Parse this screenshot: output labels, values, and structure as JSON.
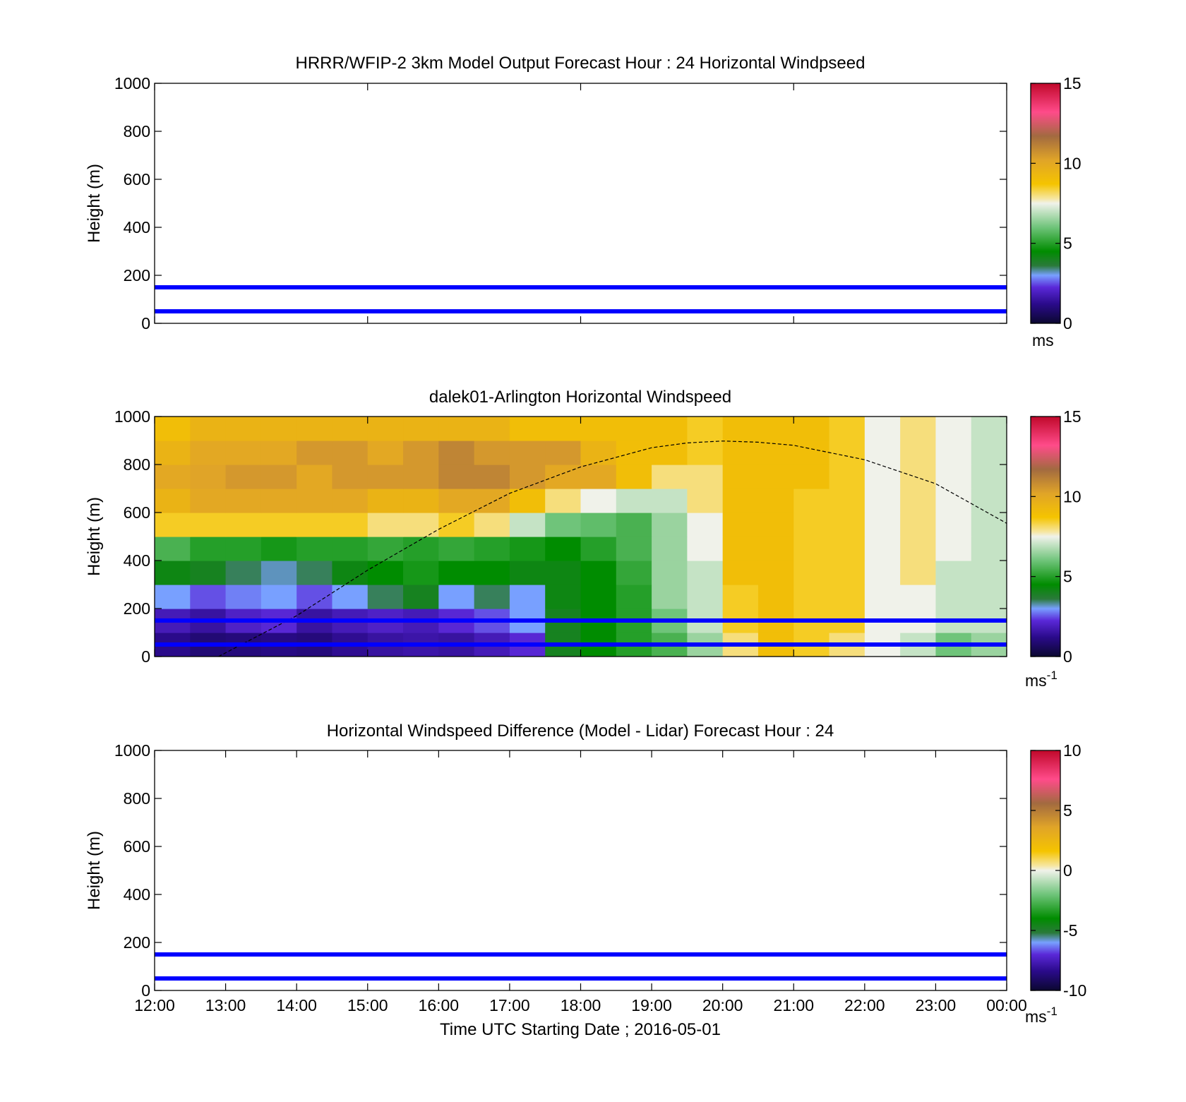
{
  "chart_data": [
    {
      "type": "heatmap",
      "title": "HRRR/WFIP-2 3km Model Output   Forecast Hour : 24 Horizontal Windpseed",
      "ylabel": "Height (m)",
      "xlabel": "",
      "ylim": [
        0,
        1000
      ],
      "yticks": [
        "0",
        "200",
        "400",
        "600",
        "800",
        "1000"
      ],
      "xlim_hours": [
        12,
        24
      ],
      "show_xtick_labels": false,
      "colorbar": {
        "ticks": [
          "0",
          "5",
          "10",
          "15"
        ],
        "range": [
          0,
          15
        ],
        "unit": "ms",
        "unit_sup": ""
      },
      "hlines": [
        {
          "y": 150,
          "color": "#0000ff"
        },
        {
          "y": 50,
          "color": "#0000ff"
        }
      ],
      "data": null
    },
    {
      "type": "heatmap",
      "title": "dalek01-Arlington  Horizontal Windspeed",
      "ylabel": "Height (m)",
      "xlabel": "",
      "ylim": [
        0,
        1000
      ],
      "yticks": [
        "0",
        "200",
        "400",
        "600",
        "800",
        "1000"
      ],
      "xlim_hours": [
        12,
        24
      ],
      "show_xtick_labels": false,
      "colorbar": {
        "ticks": [
          "0",
          "5",
          "10",
          "15"
        ],
        "range": [
          0,
          15
        ],
        "unit": "ms",
        "unit_sup": "-1"
      },
      "hlines": [
        {
          "y": 150,
          "color": "#0000ff"
        },
        {
          "y": 50,
          "color": "#0000ff"
        }
      ],
      "curve": {
        "style": "dashed",
        "color": "#000000",
        "points": [
          [
            12.9,
            0
          ],
          [
            14.0,
            170
          ],
          [
            15.0,
            360
          ],
          [
            16.0,
            530
          ],
          [
            17.0,
            680
          ],
          [
            18.0,
            790
          ],
          [
            19.0,
            870
          ],
          [
            19.5,
            890
          ],
          [
            20.0,
            898
          ],
          [
            20.5,
            893
          ],
          [
            21.0,
            880
          ],
          [
            22.0,
            820
          ],
          [
            23.0,
            720
          ],
          [
            24.0,
            555
          ]
        ]
      },
      "data": {
        "time_hours": [
          12.0,
          12.5,
          13.0,
          13.5,
          14.0,
          14.5,
          15.0,
          15.5,
          16.0,
          16.5,
          17.0,
          17.5,
          18.0,
          18.5,
          19.0,
          19.5,
          20.0,
          20.5,
          21.0,
          21.5,
          22.0,
          22.5,
          23.0,
          23.5
        ],
        "height_bins_m": [
          0,
          100,
          200,
          300,
          400,
          500,
          600,
          700,
          800,
          900
        ],
        "windspeed": [
          [
            1.2,
            0.9,
            1.0,
            1.1,
            1.0,
            1.3,
            1.5,
            1.6,
            1.5,
            1.8,
            2.2,
            4.0,
            4.5,
            5.0,
            5.5,
            6.5,
            8.0,
            9.0,
            8.5,
            8.0,
            7.5,
            7.0,
            6.0,
            6.5
          ],
          [
            1.8,
            1.5,
            2.0,
            2.2,
            1.5,
            1.8,
            2.0,
            1.8,
            2.2,
            2.5,
            3.0,
            4.0,
            4.5,
            5.0,
            6.0,
            7.0,
            8.5,
            9.0,
            8.5,
            8.5,
            7.5,
            7.5,
            7.0,
            7.0
          ],
          [
            3.0,
            2.5,
            2.8,
            3.0,
            2.5,
            3.0,
            3.5,
            4.0,
            3.0,
            3.5,
            3.0,
            4.2,
            4.5,
            5.0,
            6.5,
            7.0,
            8.5,
            9.0,
            8.5,
            8.5,
            7.5,
            7.5,
            7.0,
            7.0
          ],
          [
            4.2,
            4.0,
            3.5,
            3.2,
            3.5,
            4.2,
            4.5,
            4.8,
            4.5,
            4.5,
            4.2,
            4.2,
            4.5,
            5.2,
            6.5,
            7.0,
            9.0,
            9.0,
            8.5,
            8.5,
            7.5,
            8.0,
            7.0,
            7.0
          ],
          [
            5.5,
            5.0,
            5.0,
            4.8,
            5.0,
            5.0,
            5.2,
            5.0,
            5.2,
            5.0,
            4.8,
            4.5,
            5.0,
            5.5,
            6.5,
            7.5,
            9.0,
            9.0,
            8.5,
            8.5,
            7.5,
            8.0,
            7.5,
            7.0
          ],
          [
            8.5,
            8.5,
            8.5,
            8.5,
            8.5,
            8.5,
            8.0,
            8.0,
            8.5,
            8.0,
            7.0,
            6.0,
            5.8,
            5.5,
            6.5,
            7.5,
            9.0,
            9.0,
            8.5,
            8.5,
            7.5,
            8.0,
            7.5,
            7.0
          ],
          [
            9.5,
            10.0,
            10.0,
            10.0,
            10.0,
            10.0,
            9.5,
            9.5,
            10.0,
            10.0,
            9.0,
            8.0,
            7.5,
            7.0,
            7.0,
            8.0,
            9.0,
            9.0,
            8.5,
            8.5,
            7.5,
            8.0,
            7.5,
            7.0
          ],
          [
            10.0,
            10.2,
            10.5,
            10.5,
            10.0,
            10.5,
            10.5,
            10.5,
            11.0,
            11.0,
            10.5,
            10.0,
            10.0,
            9.0,
            8.0,
            8.0,
            9.0,
            9.0,
            9.0,
            8.5,
            7.5,
            8.0,
            7.5,
            7.0
          ],
          [
            9.5,
            10.0,
            10.0,
            10.0,
            10.5,
            10.5,
            10.0,
            10.5,
            11.0,
            10.5,
            10.5,
            10.5,
            9.5,
            9.0,
            9.0,
            8.5,
            9.0,
            9.0,
            9.0,
            8.5,
            7.5,
            8.0,
            7.5,
            7.0
          ],
          [
            9.0,
            9.5,
            9.5,
            9.5,
            9.5,
            9.5,
            9.5,
            9.5,
            9.5,
            9.5,
            9.0,
            9.0,
            9.0,
            9.0,
            9.0,
            8.5,
            9.0,
            9.0,
            9.0,
            8.5,
            7.5,
            8.0,
            7.5,
            7.0
          ]
        ]
      }
    },
    {
      "type": "heatmap",
      "title": "Horizontal Windspeed Difference (Model - Lidar) Forecast Hour : 24",
      "ylabel": "Height (m)",
      "xlabel": "Time UTC  Starting Date ; 2016-05-01",
      "ylim": [
        0,
        1000
      ],
      "yticks": [
        "0",
        "200",
        "400",
        "600",
        "800",
        "1000"
      ],
      "xlim_hours": [
        12,
        24
      ],
      "show_xtick_labels": true,
      "xticks": [
        "12:00",
        "13:00",
        "14:00",
        "15:00",
        "16:00",
        "17:00",
        "18:00",
        "19:00",
        "20:00",
        "21:00",
        "22:00",
        "23:00",
        "00:00"
      ],
      "colorbar": {
        "ticks": [
          "-10",
          "-5",
          "0",
          "5",
          "10"
        ],
        "range": [
          -10,
          10
        ],
        "unit": "ms",
        "unit_sup": "-1"
      },
      "hlines": [
        {
          "y": 150,
          "color": "#0000ff"
        },
        {
          "y": 50,
          "color": "#0000ff"
        }
      ],
      "data": null
    }
  ]
}
